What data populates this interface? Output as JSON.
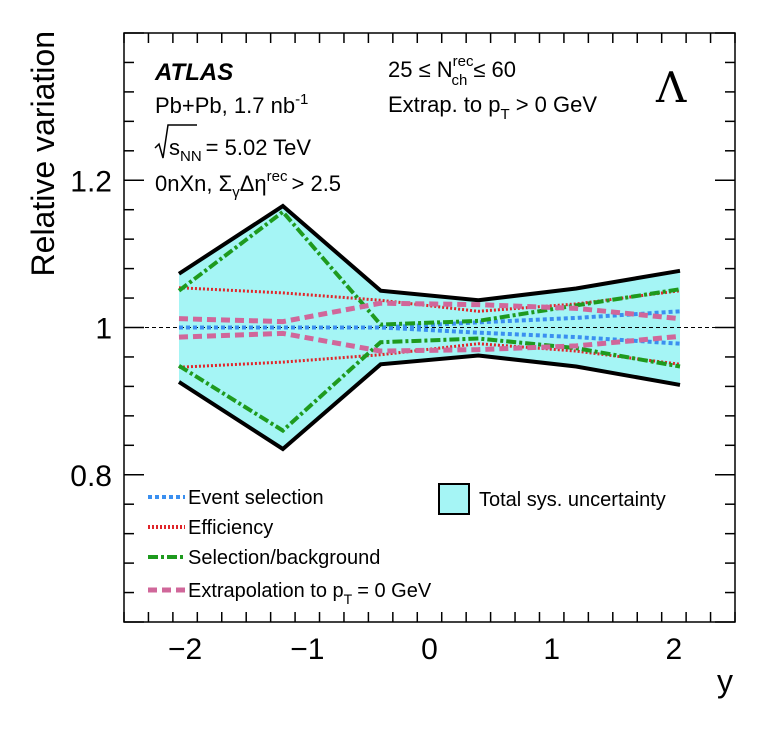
{
  "chart_data": {
    "type": "line",
    "xlabel": "y",
    "ylabel": "Relative variation",
    "xlim": [
      -2.5,
      2.5
    ],
    "ylim": [
      0.6,
      1.4
    ],
    "x_ticks": [
      -2,
      -1,
      0,
      1,
      2
    ],
    "x_tick_labels": [
      "−2",
      "−1",
      "0",
      "1",
      "2"
    ],
    "y_ticks": [
      0.8,
      1,
      1.2
    ],
    "y_tick_labels": [
      "0.8",
      "1",
      "1.2"
    ],
    "reference_line": 1,
    "x": [
      -2.05,
      -1.2,
      -0.4,
      0.4,
      1.2,
      2.05
    ],
    "total_band": {
      "name": "Total sys. uncertainty",
      "upper": [
        1.073,
        1.165,
        1.05,
        1.037,
        1.053,
        1.077
      ],
      "lower": [
        0.926,
        0.835,
        0.95,
        0.962,
        0.947,
        0.922
      ],
      "fill": "#a5f5f5",
      "edge": "#000000"
    },
    "series": [
      {
        "name": "Event selection",
        "color": "#3a8ff0",
        "style": "dotted",
        "upper": [
          1.0,
          1.0,
          1.0,
          1.007,
          1.013,
          1.022
        ],
        "lower": [
          1.0,
          1.0,
          1.0,
          0.993,
          0.987,
          0.978
        ]
      },
      {
        "name": "Efficiency",
        "color": "#e0252a",
        "style": "fine-dotted",
        "upper": [
          1.054,
          1.047,
          1.037,
          1.022,
          1.032,
          1.05
        ],
        "lower": [
          0.946,
          0.953,
          0.963,
          0.978,
          0.968,
          0.95
        ]
      },
      {
        "name": "Selection/background",
        "color": "#1e9a1e",
        "style": "dash-dot",
        "upper": [
          1.05,
          1.157,
          1.004,
          1.009,
          1.03,
          1.052
        ],
        "lower": [
          0.948,
          0.86,
          0.98,
          0.985,
          0.972,
          0.947
        ]
      },
      {
        "name": "Extrapolation to pT = 0 GeV",
        "color": "#d0679a",
        "style": "dashed",
        "upper": [
          1.012,
          1.008,
          1.033,
          1.031,
          1.026,
          1.012
        ],
        "lower": [
          0.987,
          0.992,
          0.968,
          0.97,
          0.975,
          0.988
        ]
      }
    ]
  },
  "annotations": {
    "experiment": "ATLAS",
    "system": "Pb+Pb, 1.7 nb",
    "lumi_exp": "-1",
    "energy_main": "s",
    "energy_sub": "NN",
    "energy_value": "= 5.02 TeV",
    "topology_a": "0nXn, Σ",
    "topology_sub": "γ",
    "topology_b": "Δη",
    "topology_sup": "rec",
    "topology_c": "> 2.5",
    "mult_left": "25 ≤ N",
    "mult_sup": "rec",
    "mult_sub": "ch",
    "mult_right": "≤ 60",
    "extrap_a": "Extrap. to p",
    "extrap_sub": "T",
    "extrap_b": "> 0 GeV",
    "particle": "Λ"
  },
  "legend": {
    "event_selection": "Event selection",
    "efficiency": "Efficiency",
    "selection_background": "Selection/background",
    "extrap_a": "Extrapolation to p",
    "extrap_sub": "T",
    "extrap_b": "= 0 GeV",
    "total": "Total sys. uncertainty"
  }
}
